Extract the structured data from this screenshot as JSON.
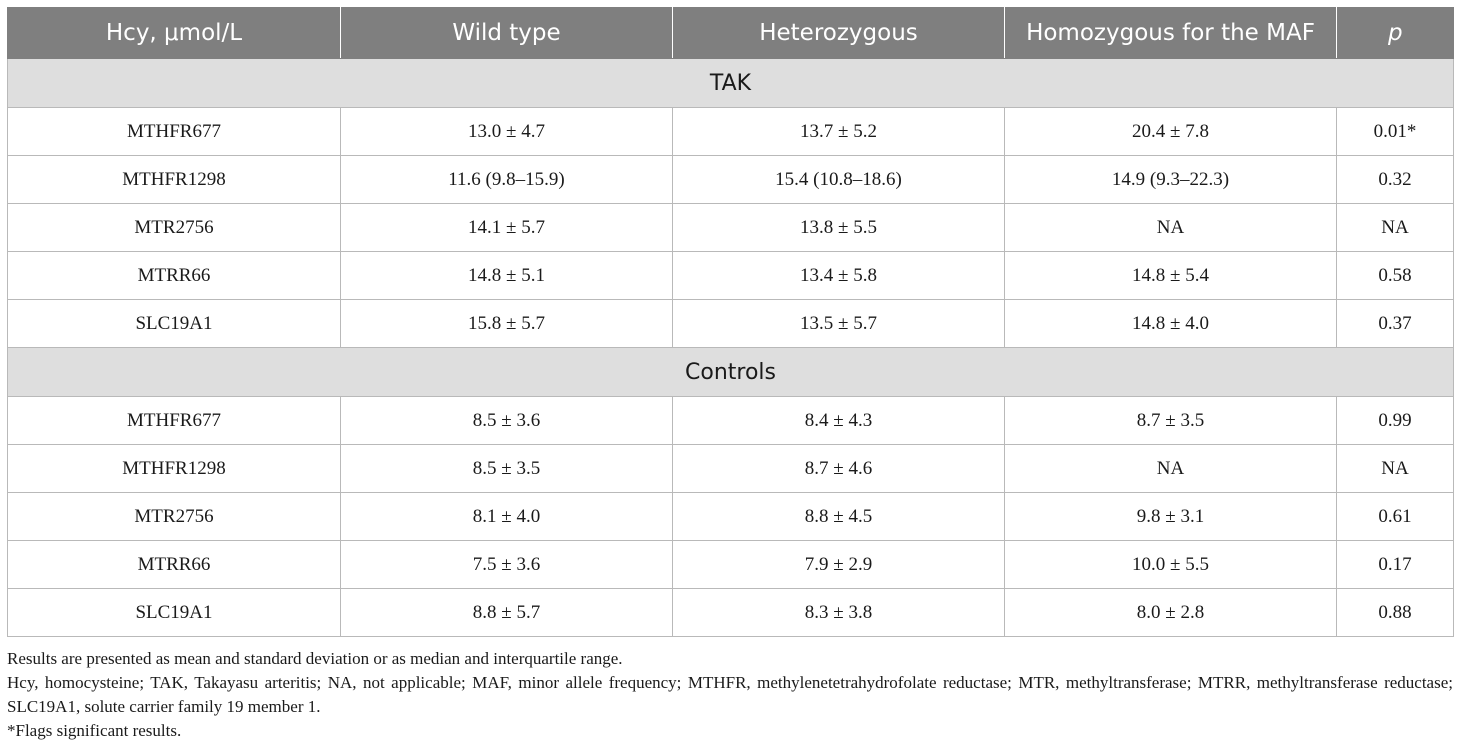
{
  "table": {
    "headers": [
      "Hcy, μmol/L",
      "Wild type",
      "Heterozygous",
      "Homozygous for the MAF",
      "p"
    ],
    "groups": [
      {
        "label": "TAK",
        "rows": [
          [
            "MTHFR677",
            "13.0 ± 4.7",
            "13.7 ± 5.2",
            "20.4 ± 7.8",
            "0.01*"
          ],
          [
            "MTHFR1298",
            "11.6 (9.8–15.9)",
            "15.4 (10.8–18.6)",
            "14.9 (9.3–22.3)",
            "0.32"
          ],
          [
            "MTR2756",
            "14.1 ± 5.7",
            "13.8 ± 5.5",
            "NA",
            "NA"
          ],
          [
            "MTRR66",
            "14.8 ± 5.1",
            "13.4 ± 5.8",
            "14.8 ± 5.4",
            "0.58"
          ],
          [
            "SLC19A1",
            "15.8 ± 5.7",
            "13.5 ± 5.7",
            "14.8 ± 4.0",
            "0.37"
          ]
        ]
      },
      {
        "label": "Controls",
        "rows": [
          [
            "MTHFR677",
            "8.5 ± 3.6",
            "8.4 ± 4.3",
            "8.7 ± 3.5",
            "0.99"
          ],
          [
            "MTHFR1298",
            "8.5 ± 3.5",
            "8.7 ± 4.6",
            "NA",
            "NA"
          ],
          [
            "MTR2756",
            "8.1 ± 4.0",
            "8.8 ± 4.5",
            "9.8 ± 3.1",
            "0.61"
          ],
          [
            "MTRR66",
            "7.5 ± 3.6",
            "7.9 ± 2.9",
            "10.0 ± 5.5",
            "0.17"
          ],
          [
            "SLC19A1",
            "8.8 ± 5.7",
            "8.3 ± 3.8",
            "8.0 ± 2.8",
            "0.88"
          ]
        ]
      }
    ]
  },
  "footnotes": [
    "Results are presented as mean and standard deviation or as median and interquartile range.",
    "Hcy, homocysteine; TAK, Takayasu arteritis; NA, not applicable; MAF, minor allele frequency; MTHFR, methylenetetrahydrofolate reductase; MTR, methyltransferase; MTRR, methyltransferase reductase; SLC19A1, solute carrier family 19 member 1.",
    "*Flags significant results."
  ]
}
